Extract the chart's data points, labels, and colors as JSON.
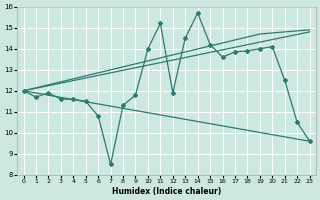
{
  "xlabel": "Humidex (Indice chaleur)",
  "bg_color": "#cce8e0",
  "line_color": "#2d7a6e",
  "grid_color": "#ffffff",
  "xlim": [
    -0.5,
    23.5
  ],
  "ylim": [
    8,
    16
  ],
  "xticks": [
    0,
    1,
    2,
    3,
    4,
    5,
    6,
    7,
    8,
    9,
    10,
    11,
    12,
    13,
    14,
    15,
    16,
    17,
    18,
    19,
    20,
    21,
    22,
    23
  ],
  "yticks": [
    8,
    9,
    10,
    11,
    12,
    13,
    14,
    15,
    16
  ],
  "line1": {
    "x": [
      0,
      1,
      2,
      3,
      4,
      5,
      6,
      7,
      8,
      9,
      10,
      11,
      12,
      13,
      14,
      15,
      16,
      17,
      18,
      19,
      20,
      21,
      22,
      23
    ],
    "y": [
      12.0,
      11.7,
      11.9,
      11.6,
      11.6,
      11.5,
      10.8,
      8.5,
      11.3,
      11.8,
      14.0,
      15.2,
      11.9,
      14.5,
      15.7,
      14.2,
      13.6,
      13.85,
      13.9,
      14.0,
      14.1,
      12.5,
      10.5,
      9.6
    ]
  },
  "line2": {
    "x": [
      0,
      23
    ],
    "y": [
      12.0,
      14.8
    ]
  },
  "line3": {
    "x": [
      0,
      19,
      23
    ],
    "y": [
      12.0,
      14.7,
      14.9
    ]
  },
  "line4": {
    "x": [
      0,
      23
    ],
    "y": [
      12.0,
      9.6
    ]
  }
}
